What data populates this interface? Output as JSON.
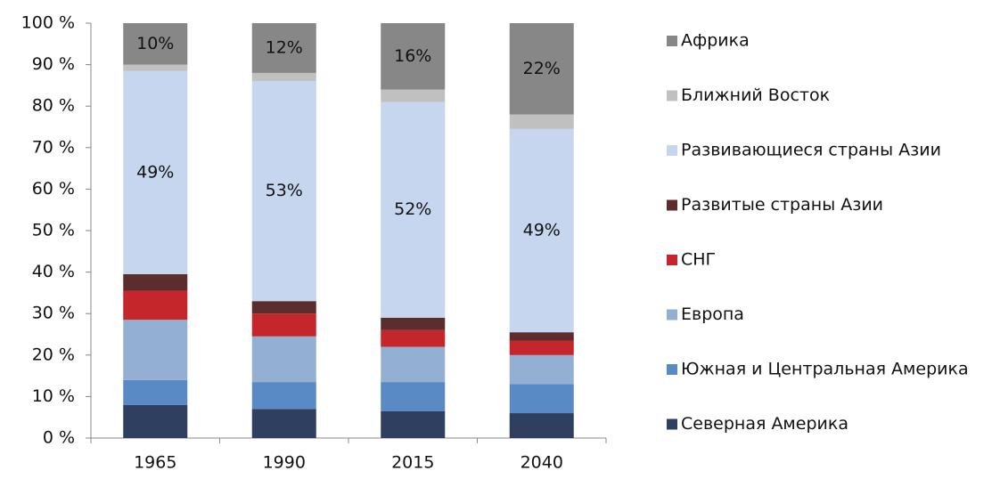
{
  "chart_data": {
    "type": "stacked_bar",
    "categories": [
      "1965",
      "1990",
      "2015",
      "2040"
    ],
    "series": [
      {
        "name": "Северная Америка",
        "color": "#2f3f5f",
        "values": [
          8,
          7,
          6.5,
          6
        ]
      },
      {
        "name": "Южная и Центральная Америка",
        "color": "#5a8ac6",
        "values": [
          6,
          6.5,
          7,
          7
        ]
      },
      {
        "name": "Европа",
        "color": "#93b0d2",
        "values": [
          14.5,
          11,
          8.5,
          7
        ]
      },
      {
        "name": "СНГ",
        "color": "#c4262b",
        "values": [
          7,
          5.5,
          4,
          3.5
        ]
      },
      {
        "name": "Развитые страны Азии",
        "color": "#5c2d2d",
        "values": [
          4,
          3,
          3,
          2
        ]
      },
      {
        "name": "Развивающиеся страны Азии",
        "color": "#c5d6ee",
        "values": [
          49,
          53,
          52,
          49
        ],
        "value_labels": [
          "49%",
          "53%",
          "52%",
          "49%"
        ]
      },
      {
        "name": "Ближний Восток",
        "color": "#c0c0c0",
        "values": [
          1.5,
          2,
          3,
          3.5
        ]
      },
      {
        "name": "Африка",
        "color": "#878787",
        "values": [
          10,
          12,
          16,
          22
        ],
        "value_labels": [
          "10%",
          "12%",
          "16%",
          "22%"
        ]
      }
    ],
    "ylim": [
      0,
      100
    ],
    "yticks": [
      {
        "value": 0,
        "label": "0 %"
      },
      {
        "value": 10,
        "label": "10 %"
      },
      {
        "value": 20,
        "label": "20 %"
      },
      {
        "value": 30,
        "label": "30 %"
      },
      {
        "value": 40,
        "label": "40 %"
      },
      {
        "value": 50,
        "label": "50 %"
      },
      {
        "value": 60,
        "label": "60 %"
      },
      {
        "value": 70,
        "label": "70 %"
      },
      {
        "value": 80,
        "label": "80 %"
      },
      {
        "value": 90,
        "label": "90 %"
      },
      {
        "value": 100,
        "label": "100 %"
      }
    ],
    "legend": "right",
    "grid": false
  }
}
